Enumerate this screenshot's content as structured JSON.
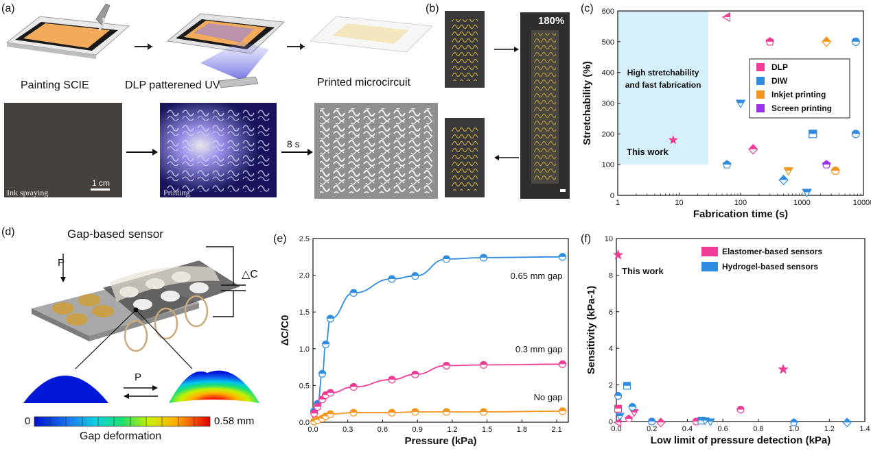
{
  "panels": {
    "a": {
      "label": "(a)",
      "step1": "Painting SCIE",
      "step2": "DLP patterened UV",
      "step3": "Printed microcircuit",
      "time": "8 s",
      "photo1_caption": "Ink spraying",
      "photo2_caption": "Printing",
      "scale": "1 cm"
    },
    "b": {
      "label": "(b)",
      "strain": "180%"
    },
    "c": {
      "label": "(c)"
    },
    "d": {
      "label": "(d)",
      "title": "Gap-based sensor",
      "pressure": "P",
      "cap_symbol": "△C",
      "arrow_label": "P",
      "cbar_min": "0",
      "cbar_max": "0.58 mm",
      "cbar_title": "Gap deformation"
    },
    "e": {
      "label": "(e)"
    },
    "f": {
      "label": "(f)"
    }
  },
  "chart_data": [
    {
      "id": "c",
      "type": "scatter",
      "xscale": "log",
      "xlim": [
        1,
        10000
      ],
      "ylim": [
        0,
        600
      ],
      "xlabel": "Fabrication time (s)",
      "ylabel": "Stretchability (%)",
      "xticks": [
        "1",
        "10",
        "100",
        "1000",
        "10000"
      ],
      "yticks": [
        "0",
        "100",
        "200",
        "300",
        "400",
        "500",
        "600"
      ],
      "highlight_text": [
        "High stretchability",
        "and fast fabrication"
      ],
      "highlight_range": {
        "x": [
          1,
          30
        ],
        "y": [
          100,
          600
        ]
      },
      "this_work": {
        "label": "This work",
        "x": 8,
        "y": 180
      },
      "legend": [
        {
          "name": "DLP",
          "color": "#f03c96"
        },
        {
          "name": "DIW",
          "color": "#2f8ce0"
        },
        {
          "name": "Inkjet printing",
          "color": "#f5951f"
        },
        {
          "name": "Screen printing",
          "color": "#9933ee"
        }
      ],
      "points": [
        {
          "x": 60,
          "y": 580,
          "series": "DLP",
          "marker": "tri-left"
        },
        {
          "x": 300,
          "y": 500,
          "series": "DLP",
          "marker": "pent"
        },
        {
          "x": 160,
          "y": 150,
          "series": "DLP",
          "marker": "diamond"
        },
        {
          "x": 7500,
          "y": 500,
          "series": "DIW",
          "marker": "circle"
        },
        {
          "x": 100,
          "y": 300,
          "series": "DIW",
          "marker": "tri-down"
        },
        {
          "x": 1500,
          "y": 200,
          "series": "DIW",
          "marker": "square"
        },
        {
          "x": 7500,
          "y": 200,
          "series": "DIW",
          "marker": "circle"
        },
        {
          "x": 60,
          "y": 100,
          "series": "DIW",
          "marker": "pent"
        },
        {
          "x": 500,
          "y": 50,
          "series": "DIW",
          "marker": "diamond"
        },
        {
          "x": 1200,
          "y": 10,
          "series": "DIW",
          "marker": "tri-down"
        },
        {
          "x": 2500,
          "y": 500,
          "series": "Inkjet printing",
          "marker": "diamond"
        },
        {
          "x": 600,
          "y": 80,
          "series": "Inkjet printing",
          "marker": "tri-down"
        },
        {
          "x": 3500,
          "y": 80,
          "series": "Inkjet printing",
          "marker": "circle"
        },
        {
          "x": 2500,
          "y": 100,
          "series": "Screen printing",
          "marker": "pent"
        }
      ]
    },
    {
      "id": "e",
      "type": "line",
      "xlim": [
        0,
        2.2
      ],
      "ylim": [
        0,
        2.5
      ],
      "xlabel": "Pressure (kPa)",
      "ylabel": "ΔC/C0",
      "xticks": [
        "0.0",
        "0.3",
        "0.6",
        "0.9",
        "1.2",
        "1.5",
        "1.8",
        "2.1"
      ],
      "yticks": [
        "0.0",
        "0.5",
        "1.0",
        "1.5",
        "2.0",
        "2.5"
      ],
      "series": [
        {
          "name": "0.65 mm gap",
          "color": "#2f8ce0",
          "x": [
            0.01,
            0.04,
            0.08,
            0.11,
            0.15,
            0.35,
            0.68,
            0.88,
            1.15,
            1.47,
            2.15
          ],
          "y": [
            0.15,
            0.25,
            0.66,
            1.06,
            1.41,
            1.76,
            1.95,
            1.99,
            2.22,
            2.24,
            2.25
          ]
        },
        {
          "name": "0.3 mm gap",
          "color": "#f03c96",
          "x": [
            0.01,
            0.04,
            0.08,
            0.11,
            0.15,
            0.35,
            0.68,
            0.88,
            1.15,
            1.47,
            2.15
          ],
          "y": [
            0.12,
            0.21,
            0.31,
            0.37,
            0.4,
            0.48,
            0.58,
            0.65,
            0.77,
            0.78,
            0.79
          ]
        },
        {
          "name": "No gap",
          "color": "#f5951f",
          "x": [
            0.01,
            0.04,
            0.08,
            0.11,
            0.15,
            0.35,
            0.68,
            0.88,
            1.15,
            1.47,
            2.15
          ],
          "y": [
            0.01,
            0.03,
            0.05,
            0.08,
            0.11,
            0.13,
            0.13,
            0.14,
            0.14,
            0.14,
            0.15
          ]
        }
      ]
    },
    {
      "id": "f",
      "type": "scatter",
      "xlim": [
        0,
        1.4
      ],
      "ylim": [
        0,
        10
      ],
      "xlabel": "Low limit of pressure detection (kPa)",
      "ylabel": "Sensitivity (kPa-1)",
      "xticks": [
        "0.0",
        "0.2",
        "0.4",
        "0.6",
        "0.8",
        "1.0",
        "1.2",
        "1.4"
      ],
      "yticks": [
        "0",
        "2",
        "4",
        "6",
        "8",
        "10"
      ],
      "this_work": {
        "label": "This work",
        "x": 0.01,
        "y": 9.1
      },
      "legend": [
        {
          "name": "Elastomer-based sensors",
          "color": "#f03c96"
        },
        {
          "name": "Hydrogel-based sensors",
          "color": "#2f8ce0"
        }
      ],
      "points": [
        {
          "x": 0.94,
          "y": 2.85,
          "series": "Elastomer-based sensors",
          "marker": "star"
        },
        {
          "x": 0.7,
          "y": 0.65,
          "series": "Elastomer-based sensors",
          "marker": "circle"
        },
        {
          "x": 0.01,
          "y": 0.7,
          "series": "Elastomer-based sensors",
          "marker": "square"
        },
        {
          "x": 0.1,
          "y": 0.5,
          "series": "Elastomer-based sensors",
          "marker": "tri-down"
        },
        {
          "x": 0.07,
          "y": 0.15,
          "series": "Elastomer-based sensors",
          "marker": "pent"
        },
        {
          "x": 0.01,
          "y": -0.05,
          "series": "Elastomer-based sensors",
          "marker": "tri-left"
        },
        {
          "x": 0.25,
          "y": -0.05,
          "series": "Elastomer-based sensors",
          "marker": "diamond"
        },
        {
          "x": 0.45,
          "y": 0.0,
          "series": "Elastomer-based sensors",
          "marker": "circle"
        },
        {
          "x": 0.01,
          "y": 1.4,
          "series": "Hydrogel-based sensors",
          "marker": "circle"
        },
        {
          "x": 0.06,
          "y": 1.95,
          "series": "Hydrogel-based sensors",
          "marker": "square"
        },
        {
          "x": 0.09,
          "y": 0.8,
          "series": "Hydrogel-based sensors",
          "marker": "circle"
        },
        {
          "x": 0.02,
          "y": 0.3,
          "series": "Hydrogel-based sensors",
          "marker": "tri-down"
        },
        {
          "x": 0.2,
          "y": 0.0,
          "series": "Hydrogel-based sensors",
          "marker": "circle"
        },
        {
          "x": 0.48,
          "y": 0.05,
          "series": "Hydrogel-based sensors",
          "marker": "square"
        },
        {
          "x": 0.5,
          "y": 0.05,
          "series": "Hydrogel-based sensors",
          "marker": "tri-down"
        },
        {
          "x": 0.53,
          "y": 0.0,
          "series": "Hydrogel-based sensors",
          "marker": "tri-down"
        },
        {
          "x": 1.0,
          "y": -0.05,
          "series": "Hydrogel-based sensors",
          "marker": "pent"
        },
        {
          "x": 1.3,
          "y": -0.05,
          "series": "Hydrogel-based sensors",
          "marker": "diamond"
        }
      ]
    }
  ]
}
